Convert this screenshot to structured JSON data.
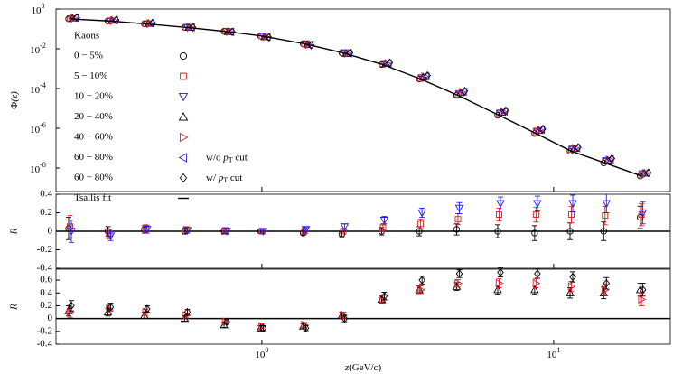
{
  "chart_data": [
    {
      "type": "scatter",
      "xscale": "log",
      "yscale": "log",
      "xlim": [
        0.197,
        25.1
      ],
      "ylim": [
        6.6e-10,
        1
      ],
      "ylabel": {
        "text": "Φ",
        "arg": "(z)"
      },
      "yticks": [
        {
          "value": 1,
          "label": "10",
          "exponent": "0"
        },
        {
          "value": 0.01,
          "label": "10",
          "exponent": "-2"
        },
        {
          "value": 0.0001,
          "label": "10",
          "exponent": "-4"
        },
        {
          "value": 1e-06,
          "label": "10",
          "exponent": "-6"
        },
        {
          "value": 1e-08,
          "label": "10",
          "exponent": "-8"
        }
      ],
      "legend_title": "Kaons",
      "x": [
        0.22,
        0.3,
        0.4,
        0.55,
        0.75,
        1.0,
        1.4,
        1.9,
        2.6,
        3.5,
        4.7,
        6.5,
        8.7,
        11.5,
        15,
        20
      ],
      "series": [
        {
          "name": "0 − 5%",
          "marker": "circle",
          "color": "#000000",
          "values": [
            0.32,
            0.25,
            0.18,
            0.12,
            0.075,
            0.044,
            0.018,
            0.0062,
            0.0016,
            0.0003,
            4.5e-05,
            4.5e-06,
            5.5e-07,
            7e-08,
            1.8e-08,
            4e-09
          ]
        },
        {
          "name": "5 − 10%",
          "marker": "square",
          "color": "#e3161b",
          "values": [
            0.33,
            0.25,
            0.18,
            0.12,
            0.076,
            0.044,
            0.018,
            0.0062,
            0.0017,
            0.00032,
            5e-05,
            5.4e-06,
            6.6e-07,
            8.4e-08,
            2.2e-08,
            4.8e-09
          ]
        },
        {
          "name": "10 − 20%",
          "marker": "tri-down",
          "color": "#1b1bf0",
          "values": [
            0.33,
            0.25,
            0.18,
            0.12,
            0.075,
            0.044,
            0.018,
            0.0064,
            0.0018,
            0.00035,
            5.6e-05,
            5.9e-06,
            7.2e-07,
            9.1e-08,
            2.4e-08,
            5.2e-09
          ]
        },
        {
          "name": "20 − 40%",
          "marker": "tri-up",
          "color": "#000000",
          "values": [
            0.35,
            0.27,
            0.19,
            0.12,
            0.072,
            0.04,
            0.016,
            0.0058,
            0.0018,
            0.00038,
            6.2e-05,
            6.4e-06,
            7.7e-07,
            9.5e-08,
            2.5e-08,
            5.5e-09
          ]
        },
        {
          "name": "40 − 60%",
          "marker": "tri-right",
          "color": "#e3161b",
          "values": [
            0.35,
            0.27,
            0.19,
            0.12,
            0.072,
            0.04,
            0.016,
            0.0058,
            0.0018,
            0.0004,
            6.6e-05,
            6.8e-06,
            8.2e-07,
            1e-07,
            2.6e-08,
            5.5e-09
          ]
        },
        {
          "name": "60 − 80%",
          "marker": "tri-left",
          "color": "#1b1bf0",
          "note": [
            "w/o ",
            "p",
            "T",
            " cut"
          ],
          "values": [
            0.36,
            0.27,
            0.19,
            0.12,
            0.071,
            0.039,
            0.016,
            0.0059,
            0.0018,
            0.00041,
            6.8e-05,
            7e-06,
            8.5e-07,
            1e-07,
            2.7e-08,
            5.6e-09
          ]
        },
        {
          "name": "60 − 80%",
          "marker": "diamond",
          "color": "#000000",
          "note": [
            "w/ ",
            "p",
            "T",
            " cut"
          ],
          "values": [
            0.37,
            0.28,
            0.2,
            0.12,
            0.071,
            0.038,
            0.015,
            0.0062,
            0.002,
            0.00045,
            7.5e-05,
            7.8e-06,
            9.3e-07,
            1.1e-07,
            3e-08,
            5.8e-09
          ]
        },
        {
          "name": "Tsallis fit",
          "style": "line",
          "color": "#000000",
          "values": [
            0.32,
            0.25,
            0.18,
            0.12,
            0.075,
            0.044,
            0.018,
            0.0062,
            0.0016,
            0.0003,
            4.5e-05,
            4.5e-06,
            5.5e-07,
            7e-08,
            1.8e-08,
            4e-09
          ]
        }
      ]
    },
    {
      "type": "errorbar",
      "xscale": "log",
      "xlim": [
        0.197,
        25.1
      ],
      "ylim": [
        -0.4,
        0.4
      ],
      "yticks": [
        -0.4,
        -0.2,
        0,
        0.2,
        0.4
      ],
      "hline": 0,
      "ylabel": "R",
      "x": [
        0.22,
        0.3,
        0.4,
        0.55,
        0.75,
        1.0,
        1.4,
        1.9,
        2.6,
        3.5,
        4.7,
        6.5,
        8.7,
        11.5,
        15,
        20
      ],
      "series": [
        {
          "marker": "circle",
          "color": "#000000",
          "values": [
            0.03,
            0.0,
            0.02,
            0.0,
            0.0,
            0.0,
            -0.02,
            -0.03,
            0.0,
            0.0,
            0.02,
            0.0,
            -0.02,
            0.0,
            0.0,
            0.15
          ],
          "errors": [
            0.12,
            0.05,
            0.04,
            0.03,
            0.03,
            0.02,
            0.02,
            0.03,
            0.04,
            0.05,
            0.06,
            0.07,
            0.08,
            0.09,
            0.1,
            0.12
          ]
        },
        {
          "marker": "square",
          "color": "#e3161b",
          "values": [
            0.05,
            -0.03,
            0.03,
            0.02,
            0.01,
            0.0,
            0.0,
            0.0,
            0.04,
            0.08,
            0.13,
            0.18,
            0.18,
            0.18,
            0.17,
            0.18
          ],
          "errors": [
            0.12,
            0.05,
            0.04,
            0.03,
            0.03,
            0.02,
            0.02,
            0.03,
            0.04,
            0.05,
            0.06,
            0.07,
            0.08,
            0.09,
            0.1,
            0.12
          ]
        },
        {
          "marker": "tri-down",
          "color": "#1b1bf0",
          "values": [
            0.0,
            -0.05,
            0.02,
            0.01,
            0.0,
            0.0,
            0.02,
            0.05,
            0.12,
            0.2,
            0.25,
            0.3,
            0.3,
            0.3,
            0.3,
            0.2
          ],
          "errors": [
            0.12,
            0.05,
            0.04,
            0.03,
            0.03,
            0.02,
            0.02,
            0.03,
            0.04,
            0.05,
            0.06,
            0.07,
            0.08,
            0.09,
            0.1,
            0.12
          ]
        }
      ]
    },
    {
      "type": "errorbar",
      "xscale": "log",
      "xlim": [
        0.197,
        25.1
      ],
      "ylim": [
        -0.4,
        0.77
      ],
      "yticks": [
        -0.4,
        -0.2,
        0,
        0.2,
        0.4,
        0.6
      ],
      "hline": 0,
      "ylabel": "R",
      "xlabel": {
        "var": "z",
        "unit": "(GeV/c)"
      },
      "xticks": [
        {
          "value": 1,
          "label": "10",
          "exponent": "0"
        },
        {
          "value": 10,
          "label": "10",
          "exponent": "1"
        }
      ],
      "x": [
        0.22,
        0.3,
        0.4,
        0.55,
        0.75,
        1.0,
        1.4,
        1.9,
        2.6,
        3.5,
        4.7,
        6.5,
        8.7,
        11.5,
        15,
        20
      ],
      "series": [
        {
          "marker": "tri-up",
          "color": "#000000",
          "values": [
            0.12,
            0.1,
            0.05,
            0.0,
            -0.1,
            -0.15,
            -0.12,
            0.05,
            0.3,
            0.45,
            0.5,
            0.45,
            0.45,
            0.4,
            0.4,
            0.45
          ],
          "errors": [
            0.08,
            0.06,
            0.05,
            0.04,
            0.04,
            0.04,
            0.04,
            0.05,
            0.06,
            0.06,
            0.06,
            0.07,
            0.07,
            0.08,
            0.09,
            0.1
          ]
        },
        {
          "marker": "tri-right",
          "color": "#e3161b",
          "values": [
            0.1,
            0.15,
            0.1,
            0.05,
            -0.05,
            -0.12,
            -0.1,
            0.05,
            0.3,
            0.45,
            0.55,
            0.55,
            0.55,
            0.5,
            0.45,
            0.3
          ],
          "errors": [
            0.08,
            0.06,
            0.05,
            0.04,
            0.04,
            0.04,
            0.04,
            0.05,
            0.06,
            0.06,
            0.06,
            0.07,
            0.07,
            0.08,
            0.09,
            0.1
          ]
        },
        {
          "marker": "diamond",
          "color": "#000000",
          "values": [
            0.2,
            0.18,
            0.15,
            0.1,
            -0.05,
            -0.15,
            -0.15,
            0.0,
            0.35,
            0.6,
            0.7,
            0.72,
            0.7,
            0.65,
            0.55,
            0.45
          ],
          "errors": [
            0.08,
            0.06,
            0.05,
            0.04,
            0.04,
            0.04,
            0.04,
            0.05,
            0.06,
            0.06,
            0.06,
            0.07,
            0.07,
            0.08,
            0.09,
            0.1
          ]
        }
      ]
    }
  ]
}
